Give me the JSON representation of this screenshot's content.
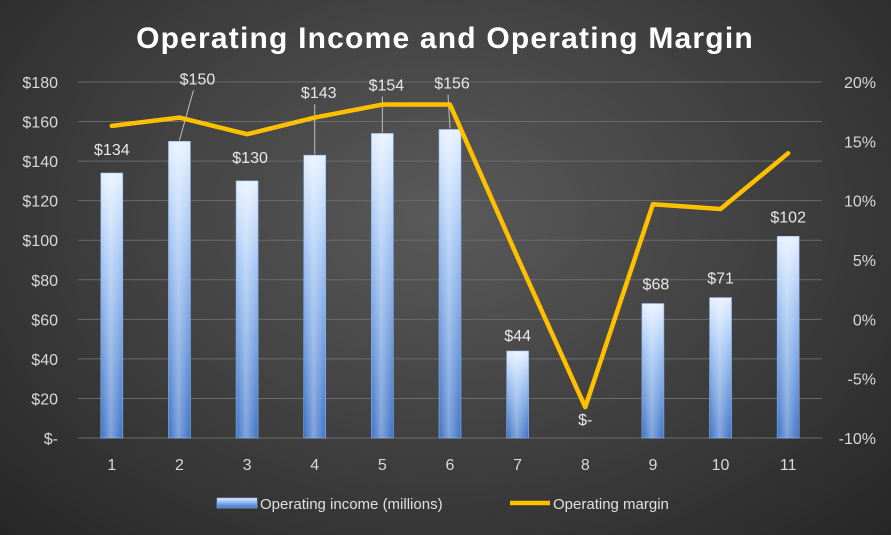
{
  "chart_data": {
    "type": "bar",
    "title": "Operating Income and Operating Margin",
    "categories": [
      "1",
      "2",
      "3",
      "4",
      "5",
      "6",
      "7",
      "8",
      "9",
      "10",
      "11"
    ],
    "series": [
      {
        "name": "Operating income (millions)",
        "type": "bar",
        "axis": "left",
        "values": [
          134,
          150,
          130,
          143,
          154,
          156,
          44,
          0,
          68,
          71,
          102
        ],
        "data_labels": [
          "$134",
          "$150",
          "$130",
          "$143",
          "$154",
          "$156",
          "$44",
          "$-",
          "$68",
          "$71",
          "$102"
        ]
      },
      {
        "name": "Operating margin",
        "type": "line",
        "axis": "right",
        "values": [
          16.3,
          17.0,
          15.6,
          17.0,
          18.1,
          18.1,
          5.2,
          -7.4,
          9.7,
          9.3,
          14.0
        ]
      }
    ],
    "y_left": {
      "range": [
        0,
        180
      ],
      "ticks": [
        0,
        20,
        40,
        60,
        80,
        100,
        120,
        140,
        160,
        180
      ],
      "tick_labels": [
        "$-",
        "$20",
        "$40",
        "$60",
        "$80",
        "$100",
        "$120",
        "$140",
        "$160",
        "$180"
      ]
    },
    "y_right": {
      "range": [
        -10,
        20
      ],
      "ticks": [
        -10,
        -5,
        0,
        5,
        10,
        15,
        20
      ],
      "tick_labels": [
        "-10%",
        "-5%",
        "0%",
        "5%",
        "10%",
        "15%",
        "20%"
      ]
    },
    "legend": {
      "position": "bottom"
    },
    "grid": true,
    "colors": {
      "bar_light": "#ddeeff",
      "bar_dark": "#3f77c9",
      "line": "#ffc000",
      "grid": "#6a6a6a"
    }
  }
}
